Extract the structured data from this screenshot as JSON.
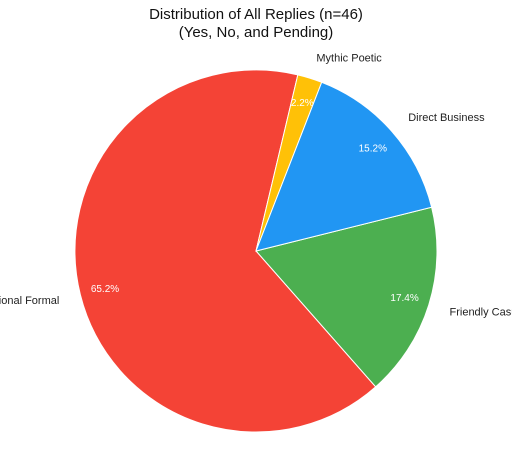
{
  "chart_data": {
    "type": "pie",
    "title": "Distribution of All Replies (n=46)",
    "subtitle": "(Yes, No, and Pending)",
    "slices": [
      {
        "label": "Friendly Casual",
        "value": 17.4,
        "pct_label": "17.4%",
        "color": "#4CAF50"
      },
      {
        "label": "Professional Formal",
        "value": 65.2,
        "pct_label": "65.2%",
        "color": "#F44336"
      },
      {
        "label": "Mythic Poetic",
        "value": 2.2,
        "pct_label": "2.2%",
        "color": "#FFC107"
      },
      {
        "label": "Direct Business",
        "value": 15.2,
        "pct_label": "15.2%",
        "color": "#2196F3"
      }
    ]
  }
}
